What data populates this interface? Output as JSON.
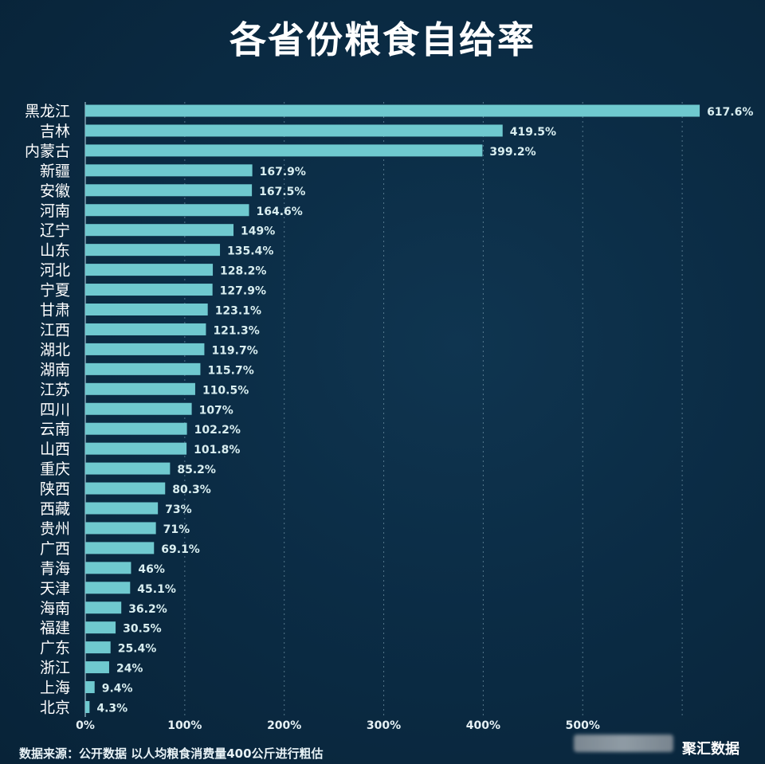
{
  "title": "各省份粮食自给率",
  "source": "数据来源：公开数据 以人均粮食消费量400公斤进行粗估",
  "brand": "聚汇数据",
  "colors": {
    "bar": "#6fc9cf",
    "label": "#d9eef0",
    "grid": "#8fb3c4"
  },
  "chart_data": {
    "type": "bar",
    "orientation": "horizontal",
    "title": "各省份粮食自给率",
    "categories": [
      "黑龙江",
      "吉林",
      "内蒙古",
      "新疆",
      "安徽",
      "河南",
      "辽宁",
      "山东",
      "河北",
      "宁夏",
      "甘肃",
      "江西",
      "湖北",
      "湖南",
      "江苏",
      "四川",
      "云南",
      "山西",
      "重庆",
      "陕西",
      "西藏",
      "贵州",
      "广西",
      "青海",
      "天津",
      "海南",
      "福建",
      "广东",
      "浙江",
      "上海",
      "北京"
    ],
    "values": [
      617.6,
      419.5,
      399.2,
      167.9,
      167.5,
      164.6,
      149,
      135.4,
      128.2,
      127.9,
      123.1,
      121.3,
      119.7,
      115.7,
      110.5,
      107,
      102.2,
      101.8,
      85.2,
      80.3,
      73,
      71,
      69.1,
      46,
      45.1,
      36.2,
      30.5,
      25.4,
      24,
      9.4,
      4.3
    ],
    "value_labels": [
      "617.6%",
      "419.5%",
      "399.2%",
      "167.9%",
      "167.5%",
      "164.6%",
      "149%",
      "135.4%",
      "128.2%",
      "127.9%",
      "123.1%",
      "121.3%",
      "119.7%",
      "115.7%",
      "110.5%",
      "107%",
      "102.2%",
      "101.8%",
      "85.2%",
      "80.3%",
      "73%",
      "71%",
      "69.1%",
      "46%",
      "45.1%",
      "36.2%",
      "30.5%",
      "25.4%",
      "24%",
      "9.4%",
      "4.3%"
    ],
    "xticks": [
      0,
      100,
      200,
      300,
      400,
      500
    ],
    "xtick_labels": [
      "0%",
      "100%",
      "200%",
      "300%",
      "400%",
      "500%"
    ],
    "xlim": [
      0,
      600
    ],
    "grid": true
  }
}
